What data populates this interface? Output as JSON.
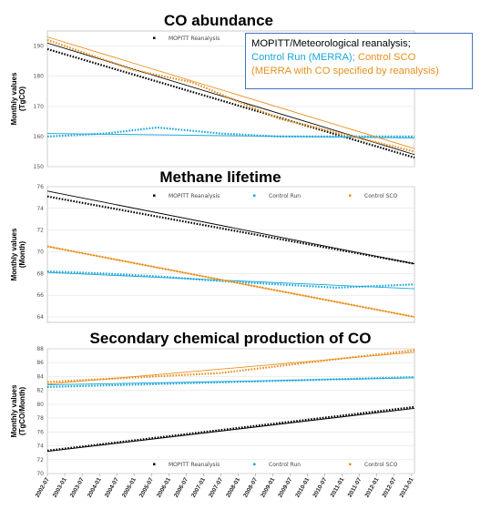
{
  "colors": {
    "mopitt": "#000000",
    "control": "#1aa7d8",
    "sco": "#e8901e",
    "callout_border": "#4472c4"
  },
  "callout": {
    "line1": "MOPITT/Meteorological reanalysis;",
    "line2a": "Control Run (MERRA); ",
    "line2b": "Control SCO",
    "line3": "(MERRA with CO specified by reanalysis)"
  },
  "x_tick_labels": [
    "2002-07",
    "2003-01",
    "2003-07",
    "2004-01",
    "2004-07",
    "2005-01",
    "2005-07",
    "2006-01",
    "2006-07",
    "2007-01",
    "2007-07",
    "2008-01",
    "2008-07",
    "2009-01",
    "2009-07",
    "2010-01",
    "2010-07",
    "2011-01",
    "2011-07",
    "2012-01",
    "2012-07",
    "2013-01"
  ],
  "chart_data": [
    {
      "type": "line",
      "title": "CO abundance",
      "ylabel_line1": "Monthly values",
      "ylabel_line2": "(TgCO)",
      "ylim": [
        150,
        195
      ],
      "yticks": [
        150,
        160,
        170,
        180,
        190
      ],
      "legend": [
        "MOPITT Reanalysis"
      ],
      "series": [
        {
          "name": "MOPITT Reanalysis",
          "color": "black",
          "x": [
            0,
            127
          ],
          "values": [
            189,
            153
          ],
          "trend_start": 191,
          "trend_end": 154
        },
        {
          "name": "Control Run",
          "color": "control",
          "x": [
            0,
            20,
            38,
            60,
            80,
            100,
            127
          ],
          "values": [
            160,
            161,
            163,
            161,
            160,
            160,
            160
          ],
          "trend_start": 161,
          "trend_end": 159.5
        },
        {
          "name": "Control SCO",
          "color": "sco",
          "x": [
            0,
            30,
            50,
            60,
            80,
            127
          ],
          "values": [
            192,
            182,
            178,
            174,
            166,
            155
          ],
          "trend_start": 193,
          "trend_end": 156
        }
      ]
    },
    {
      "type": "line",
      "title": "Methane lifetime",
      "ylabel_line1": "Monthly values",
      "ylabel_line2": "(Month)",
      "ylim": [
        63.5,
        76
      ],
      "yticks": [
        64,
        66,
        68,
        70,
        72,
        74,
        76
      ],
      "legend": [
        "MOPITT Reanalysis",
        "Control Run",
        "Control SCO"
      ],
      "series": [
        {
          "name": "MOPITT Reanalysis",
          "color": "black",
          "x": [
            0,
            127
          ],
          "values": [
            75.1,
            68.9
          ],
          "trend_start": 75.6,
          "trend_end": 68.9
        },
        {
          "name": "Control Run",
          "color": "control",
          "x": [
            0,
            20,
            40,
            60,
            80,
            100,
            127
          ],
          "values": [
            68.2,
            68.0,
            67.7,
            67.3,
            67.0,
            66.7,
            67.0
          ],
          "trend_start": 68.1,
          "trend_end": 66.6
        },
        {
          "name": "Control SCO",
          "color": "sco",
          "x": [
            0,
            127
          ],
          "values": [
            70.5,
            64.0
          ],
          "trend_start": 70.5,
          "trend_end": 64.0
        }
      ]
    },
    {
      "type": "line",
      "title": "Secondary chemical production of CO",
      "ylabel_line1": "Monthly values",
      "ylabel_line2": "(TgCO/Month)",
      "ylim": [
        70,
        88
      ],
      "yticks": [
        70,
        72,
        74,
        76,
        78,
        80,
        82,
        84,
        86,
        88
      ],
      "legend": [
        "MOPITT Reanalysis",
        "Control Run",
        "Control SCO"
      ],
      "series": [
        {
          "name": "MOPITT Reanalysis",
          "color": "black",
          "x": [
            0,
            127
          ],
          "values": [
            73.3,
            79.6
          ],
          "trend_start": 73.2,
          "trend_end": 79.4
        },
        {
          "name": "Control Run",
          "color": "control",
          "x": [
            0,
            127
          ],
          "values": [
            82.5,
            83.9
          ],
          "trend_start": 82.8,
          "trend_end": 83.8
        },
        {
          "name": "Control SCO",
          "color": "sco",
          "x": [
            0,
            60,
            80,
            100,
            127
          ],
          "values": [
            83.2,
            84.5,
            85.5,
            86.5,
            87.8
          ],
          "trend_start": 82.9,
          "trend_end": 87.5
        }
      ]
    }
  ]
}
